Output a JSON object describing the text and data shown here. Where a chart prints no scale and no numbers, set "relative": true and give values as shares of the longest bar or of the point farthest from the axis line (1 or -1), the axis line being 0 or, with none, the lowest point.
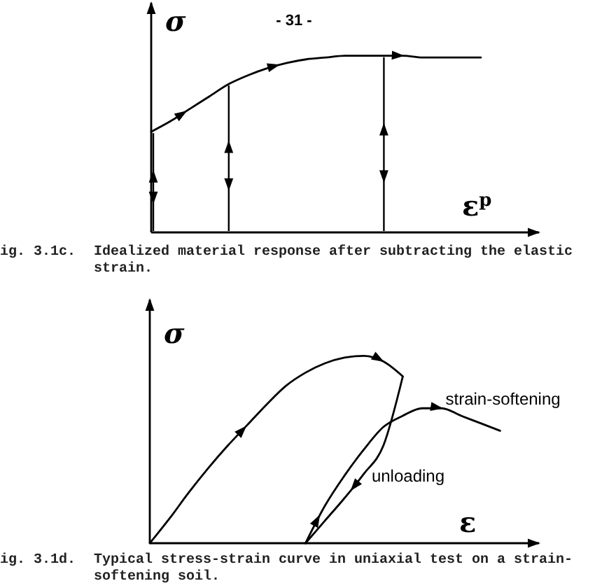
{
  "chart_data": [
    {
      "type": "line",
      "title": "- 31 -",
      "xlabel": "ε$^{p}$",
      "ylabel": "σ",
      "relative": true,
      "categories": [
        null,
        null,
        null,
        null,
        null,
        null,
        null,
        null,
        null,
        null,
        null,
        null,
        null,
        null,
        null,
        null,
        null,
        null
      ],
      "series": [
        {
          "color": "#000000",
          "values": [
            0.57,
            0.63,
            0.7,
            0.77,
            0.84,
            0.89,
            0.93,
            0.96,
            0.98,
            0.99,
            1,
            1,
            1,
            1,
            0.99,
            0.99,
            0.99,
            0.99
          ]
        }
      ],
      "annotations": [
        "ig. 3.1c.  Idealized material response after subtracting the elastic strain."
      ]
    },
    {
      "type": "line",
      "xlabel": "ε",
      "ylabel": "σ",
      "relative": true,
      "categories": [
        null,
        null,
        null,
        null,
        null,
        null,
        null,
        null,
        null,
        null,
        null,
        null,
        null,
        null,
        null,
        null,
        null,
        null,
        null
      ],
      "series": [
        {
          "color": "#000000",
          "values": [
            0,
            0.13,
            0.27,
            0.4,
            0.52,
            0.63,
            0.74,
            0.84,
            0.91,
            0.96,
            0.99,
            1,
            0.97,
            0.89,
            null,
            null,
            null,
            null,
            null
          ]
        },
        {
          "color": "#000000",
          "values": [
            null,
            null,
            null,
            null,
            null,
            null,
            null,
            null,
            0,
            0.12,
            0.24,
            0.37,
            0.52,
            0.89,
            null,
            null,
            null,
            null,
            null
          ]
        },
        {
          "color": "#000000",
          "values": [
            null,
            null,
            null,
            null,
            null,
            null,
            null,
            null,
            0,
            0.2,
            0.36,
            0.5,
            0.62,
            0.68,
            0.72,
            0.72,
            0.68,
            0.64,
            0.6
          ]
        }
      ],
      "annotations": [
        "strain-softening",
        "unloading",
        "ig. 3.1d.  Typical stress-strain curve in uniaxial test on a strain-softening soil."
      ]
    }
  ]
}
